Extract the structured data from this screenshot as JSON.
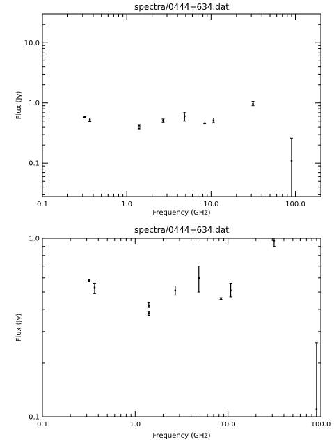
{
  "chart_data": [
    {
      "type": "scatter",
      "title": "spectra/0444+634.dat",
      "xlabel": "Frequency (GHz)",
      "ylabel": "Flux (Jy)",
      "x_scale": "log",
      "y_scale": "log",
      "xlim": [
        0.1,
        200
      ],
      "ylim": [
        0.028,
        30
      ],
      "x_ticks": [
        0.1,
        1.0,
        10.0,
        100.0
      ],
      "x_tick_labels": [
        "0.1",
        "1.0",
        "10.0",
        "100.0"
      ],
      "y_ticks": [
        0.1,
        1.0,
        10.0
      ],
      "y_tick_labels": [
        "0.1",
        "1.0",
        "10.0"
      ],
      "points": [
        {
          "x": 0.318,
          "y": 0.58,
          "ylo": 0.575,
          "yhi": 0.585
        },
        {
          "x": 0.365,
          "y": 0.53,
          "ylo": 0.49,
          "yhi": 0.56
        },
        {
          "x": 1.4,
          "y": 0.38,
          "ylo": 0.37,
          "yhi": 0.39
        },
        {
          "x": 1.4,
          "y": 0.42,
          "ylo": 0.41,
          "yhi": 0.435
        },
        {
          "x": 2.7,
          "y": 0.51,
          "ylo": 0.48,
          "yhi": 0.54
        },
        {
          "x": 4.85,
          "y": 0.6,
          "ylo": 0.5,
          "yhi": 0.7
        },
        {
          "x": 8.4,
          "y": 0.46,
          "ylo": 0.455,
          "yhi": 0.465
        },
        {
          "x": 10.7,
          "y": 0.51,
          "ylo": 0.47,
          "yhi": 0.56
        },
        {
          "x": 31.4,
          "y": 0.97,
          "ylo": 0.9,
          "yhi": 1.06
        },
        {
          "x": 90.0,
          "y": 0.11,
          "ylo": 0.028,
          "yhi": 0.26
        }
      ]
    },
    {
      "type": "scatter",
      "title": "spectra/0444+634.dat",
      "xlabel": "Frequency (GHz)",
      "ylabel": "Flux (Jy)",
      "x_scale": "log",
      "y_scale": "log",
      "xlim": [
        0.1,
        100
      ],
      "ylim": [
        0.1,
        1.0
      ],
      "x_ticks": [
        0.1,
        1.0,
        10.0,
        100.0
      ],
      "x_tick_labels": [
        "0.1",
        "1.0",
        "10.0",
        "100.0"
      ],
      "y_ticks": [
        0.1,
        1.0
      ],
      "y_tick_labels": [
        "0.1",
        "1.0"
      ],
      "points": [
        {
          "x": 0.318,
          "y": 0.58,
          "ylo": 0.575,
          "yhi": 0.585
        },
        {
          "x": 0.365,
          "y": 0.53,
          "ylo": 0.49,
          "yhi": 0.56
        },
        {
          "x": 1.4,
          "y": 0.38,
          "ylo": 0.37,
          "yhi": 0.39
        },
        {
          "x": 1.4,
          "y": 0.42,
          "ylo": 0.41,
          "yhi": 0.435
        },
        {
          "x": 2.7,
          "y": 0.51,
          "ylo": 0.48,
          "yhi": 0.54
        },
        {
          "x": 4.85,
          "y": 0.6,
          "ylo": 0.5,
          "yhi": 0.7
        },
        {
          "x": 8.4,
          "y": 0.46,
          "ylo": 0.455,
          "yhi": 0.465
        },
        {
          "x": 10.7,
          "y": 0.51,
          "ylo": 0.47,
          "yhi": 0.56
        },
        {
          "x": 31.4,
          "y": 0.97,
          "ylo": 0.9,
          "yhi": 1.06
        },
        {
          "x": 90.0,
          "y": 0.11,
          "ylo": 0.1,
          "yhi": 0.26
        }
      ]
    }
  ]
}
